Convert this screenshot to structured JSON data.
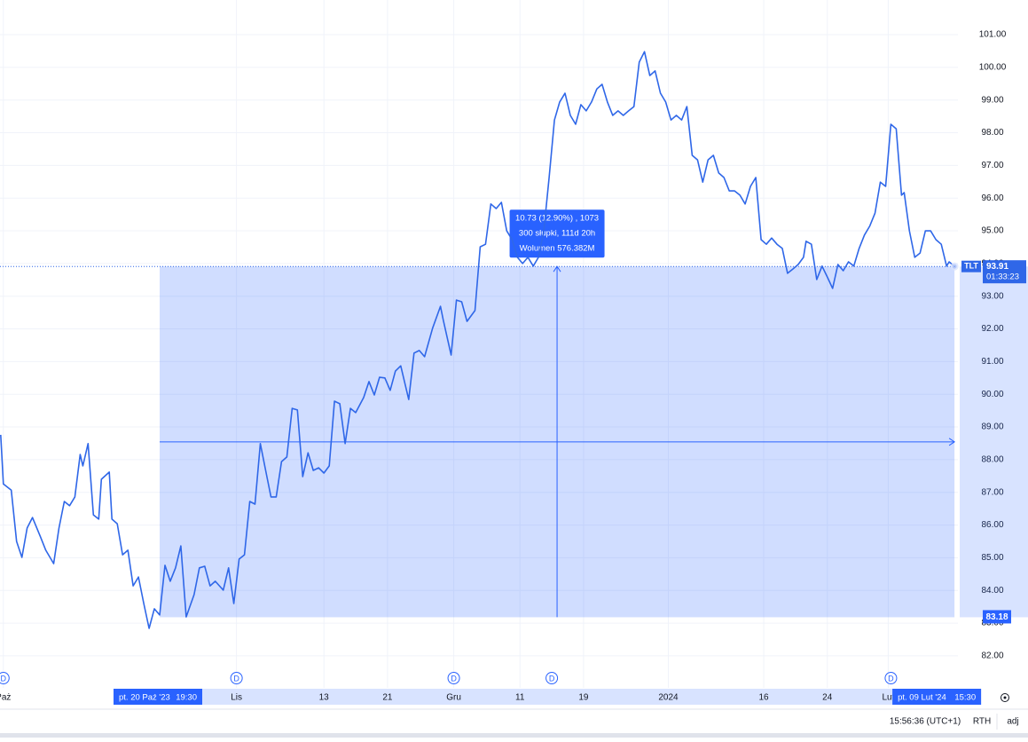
{
  "chart_data": {
    "type": "line",
    "series": [
      {
        "name": "TLT",
        "color": "#2f67e8",
        "x": [
          -60,
          -59,
          -56,
          -54,
          -52,
          -50,
          -48,
          -45,
          -43,
          -40,
          -38,
          -36,
          -34,
          -32,
          -30,
          -29,
          -27,
          -25,
          -23,
          -22,
          -19,
          -18,
          -16,
          -14,
          -12,
          -10,
          -8,
          -6,
          -4,
          -2,
          0,
          2,
          4,
          6,
          8,
          10,
          13,
          15,
          17,
          19,
          21,
          24,
          26,
          28,
          30,
          32,
          34,
          36,
          38,
          40,
          42,
          44,
          46,
          48,
          50,
          52,
          54,
          56,
          58,
          60,
          62,
          64,
          66,
          68,
          70,
          72,
          74,
          77,
          79,
          81,
          83,
          85,
          87,
          89,
          91,
          94,
          96,
          98,
          100,
          103,
          106,
          107,
          110,
          112,
          114,
          116,
          119,
          121,
          123,
          125,
          127,
          129,
          131,
          133,
          135,
          137,
          139,
          141,
          143,
          145,
          147,
          149,
          151,
          153,
          155,
          157,
          159,
          161,
          163,
          165,
          167,
          169,
          171,
          173,
          175,
          177,
          179,
          181,
          183,
          185,
          187,
          189,
          191,
          193,
          195,
          197,
          199,
          201,
          203,
          205,
          207,
          209,
          211,
          213,
          215,
          217,
          219,
          221,
          223,
          225,
          227,
          229,
          231,
          233,
          235,
          237,
          239,
          241,
          243,
          244,
          246,
          248,
          250,
          252,
          254,
          256,
          258,
          260,
          262,
          264,
          266,
          268,
          270,
          272,
          274,
          276,
          278,
          280,
          281,
          283,
          285,
          287,
          289,
          291,
          293,
          295,
          297,
          298,
          300
        ],
        "values": [
          88.76,
          87.26,
          87.07,
          85.5,
          85.01,
          85.91,
          86.23,
          85.64,
          85.23,
          84.82,
          85.91,
          86.72,
          86.59,
          86.86,
          88.16,
          87.81,
          88.49,
          86.31,
          86.18,
          87.4,
          87.62,
          86.18,
          86.04,
          85.09,
          85.23,
          84.14,
          84.41,
          83.6,
          82.84,
          83.44,
          83.25,
          84.77,
          84.28,
          84.69,
          85.36,
          83.19,
          83.87,
          84.69,
          84.74,
          84.14,
          84.28,
          84.01,
          84.69,
          83.6,
          84.96,
          85.09,
          86.72,
          86.64,
          88.49,
          87.67,
          86.86,
          86.86,
          87.94,
          88.08,
          89.57,
          89.52,
          87.48,
          88.21,
          87.67,
          87.75,
          87.59,
          87.81,
          89.79,
          89.71,
          88.49,
          89.57,
          89.44,
          89.9,
          90.39,
          89.98,
          90.52,
          90.5,
          90.12,
          90.71,
          90.87,
          89.84,
          91.26,
          91.34,
          91.15,
          92.02,
          92.69,
          92.29,
          91.2,
          92.88,
          92.83,
          92.23,
          92.56,
          94.51,
          94.59,
          95.82,
          95.68,
          95.87,
          95.0,
          94.73,
          94.19,
          94.0,
          94.19,
          93.92,
          94.19,
          95.0,
          96.63,
          98.39,
          98.94,
          99.21,
          98.53,
          98.26,
          98.86,
          98.67,
          98.94,
          99.34,
          99.48,
          98.94,
          98.53,
          98.67,
          98.53,
          98.67,
          98.8,
          100.16,
          100.48,
          99.75,
          99.89,
          99.21,
          98.94,
          98.39,
          98.53,
          98.39,
          98.8,
          97.31,
          97.17,
          96.49,
          97.17,
          97.31,
          96.77,
          96.63,
          96.22,
          96.22,
          96.09,
          95.82,
          96.36,
          96.63,
          94.73,
          94.59,
          94.78,
          94.59,
          94.46,
          93.7,
          93.83,
          93.97,
          94.19,
          94.68,
          94.59,
          93.51,
          93.92,
          93.59,
          93.24,
          93.97,
          93.78,
          94.05,
          93.92,
          94.46,
          94.87,
          95.14,
          95.54,
          96.49,
          96.36,
          98.26,
          98.12,
          96.09,
          96.17,
          95.0,
          94.19,
          94.32,
          95.0,
          95.0,
          94.73,
          94.59,
          93.92,
          94.05,
          93.91
        ]
      }
    ],
    "xlim": [
      -60.26,
      301.3
    ],
    "ylim": [
      81.02,
      102.06
    ],
    "yticks": [
      {
        "value": 82,
        "label": "82.00"
      },
      {
        "value": 83,
        "label": "83.00"
      },
      {
        "value": 84,
        "label": "84.00"
      },
      {
        "value": 85,
        "label": "85.00"
      },
      {
        "value": 86,
        "label": "86.00"
      },
      {
        "value": 87,
        "label": "87.00"
      },
      {
        "value": 88,
        "label": "88.00"
      },
      {
        "value": 89,
        "label": "89.00"
      },
      {
        "value": 90,
        "label": "90.00"
      },
      {
        "value": 91,
        "label": "91.00"
      },
      {
        "value": 92,
        "label": "92.00"
      },
      {
        "value": 93,
        "label": "93.00"
      },
      {
        "value": 94,
        "label": "94.00"
      },
      {
        "value": 95,
        "label": "95.00"
      },
      {
        "value": 96,
        "label": "96.00"
      },
      {
        "value": 97,
        "label": "97.00"
      },
      {
        "value": 98,
        "label": "98.00"
      },
      {
        "value": 99,
        "label": "99.00"
      },
      {
        "value": 100,
        "label": "100.00"
      },
      {
        "value": 101,
        "label": "101.00"
      }
    ],
    "xticks": [
      {
        "value": -59,
        "label": "Paż"
      },
      {
        "value": 29,
        "label": "Lis"
      },
      {
        "value": 62,
        "label": "13"
      },
      {
        "value": 86,
        "label": "21"
      },
      {
        "value": 111,
        "label": "Gru"
      },
      {
        "value": 136,
        "label": "11"
      },
      {
        "value": 160,
        "label": "19"
      },
      {
        "value": 192,
        "label": "2024"
      },
      {
        "value": 228,
        "label": "16"
      },
      {
        "value": 252,
        "label": "24"
      },
      {
        "value": 275,
        "label": "Lut"
      }
    ],
    "grid": true,
    "last_price": {
      "value": 93.91,
      "countdown": "01:33:23"
    },
    "measure": {
      "x": [
        0,
        300
      ],
      "y": [
        83.18,
        93.91
      ],
      "color": "#2962ff",
      "lines": [
        "10.73 (12.90%) , 1073",
        "300 słupki, 111d 20h",
        "Wolumen 576.382M"
      ],
      "start_label": {
        "date": "pt. 20 Paź '23",
        "time": "19:30"
      },
      "end_label": {
        "date": "pt. 09 Lut '24",
        "time": "15:30"
      }
    },
    "events": [
      {
        "x": -59,
        "label": "D"
      },
      {
        "x": 29,
        "label": "D"
      },
      {
        "x": 111,
        "label": "D"
      },
      {
        "x": 148,
        "label": "D"
      },
      {
        "x": 276,
        "label": "D"
      }
    ]
  },
  "status_bar": {
    "time": "15:56:36 (UTC+1)",
    "session": "RTH",
    "adjust": "adj"
  }
}
